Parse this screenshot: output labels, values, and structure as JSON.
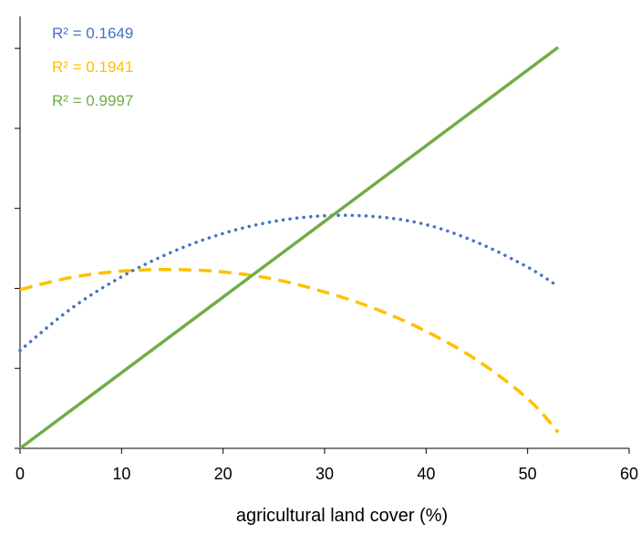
{
  "chart_data": {
    "type": "line",
    "xlabel": "agricultural land cover (%)",
    "ylabel": "",
    "title": "",
    "xlim": [
      0,
      60
    ],
    "ylim": [
      0,
      5
    ],
    "xticks": [
      0,
      10,
      20,
      30,
      40,
      50,
      60
    ],
    "grid": false,
    "series": [
      {
        "color": "#4472C4",
        "style": "dotted",
        "r2_label": "R² = 0.1649",
        "x": [
          0,
          5,
          10,
          15,
          20,
          25,
          30,
          35,
          40,
          45,
          50,
          53
        ],
        "y": [
          1.22,
          1.74,
          2.14,
          2.45,
          2.68,
          2.83,
          2.9,
          2.89,
          2.79,
          2.57,
          2.26,
          2.02
        ]
      },
      {
        "color": "#FFC000",
        "style": "dashed",
        "r2_label": "R² = 0.1941",
        "x": [
          0,
          5,
          10,
          15,
          20,
          25,
          30,
          35,
          40,
          45,
          50,
          53
        ],
        "y": [
          1.98,
          2.13,
          2.21,
          2.23,
          2.2,
          2.11,
          1.95,
          1.74,
          1.46,
          1.1,
          0.62,
          0.2
        ]
      },
      {
        "color": "#70AD47",
        "style": "solid",
        "r2_label": "R² = 0.9997",
        "x": [
          0,
          53
        ],
        "y": [
          0.0,
          5.0
        ]
      }
    ]
  }
}
